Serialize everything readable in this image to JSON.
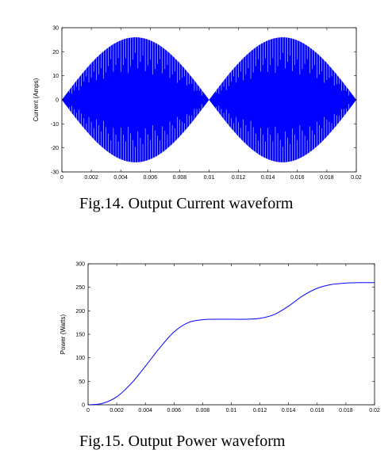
{
  "figures": [
    {
      "caption": "Fig.14. Output Current waveform"
    },
    {
      "caption": "Fig.15. Output Power waveform"
    }
  ],
  "chart_data": [
    {
      "type": "line",
      "title": "",
      "xlabel": "",
      "ylabel": "Current (Amps)",
      "xlim": [
        0,
        0.02
      ],
      "ylim": [
        -30,
        30
      ],
      "x_ticks": [
        "0",
        "0.002",
        "0.004",
        "0.006",
        "0.008",
        "0.01",
        "0.012",
        "0.014",
        "0.016",
        "0.018",
        "0.02"
      ],
      "y_ticks": [
        "-30",
        "-20",
        "-10",
        "0",
        "10",
        "20",
        "30"
      ],
      "envelope": {
        "amplitude": 26,
        "x_zeros": [
          0,
          0.01,
          0.02
        ],
        "x_peaks": [
          0.005,
          0.015
        ],
        "shape": "abs-sine, rapidly switching fill"
      },
      "grid": false,
      "color": "#0000ff"
    },
    {
      "type": "line",
      "title": "",
      "xlabel": "",
      "ylabel": "Power (Watts)",
      "xlim": [
        0,
        0.02
      ],
      "ylim": [
        0,
        300
      ],
      "x_ticks": [
        "0",
        "0.002",
        "0.004",
        "0.006",
        "0.008",
        "0.01",
        "0.012",
        "0.014",
        "0.016",
        "0.018",
        "0.02"
      ],
      "y_ticks": [
        "0",
        "50",
        "100",
        "150",
        "200",
        "250",
        "300"
      ],
      "x": [
        0,
        0.001,
        0.002,
        0.003,
        0.004,
        0.005,
        0.006,
        0.007,
        0.008,
        0.009,
        0.01,
        0.011,
        0.012,
        0.013,
        0.014,
        0.015,
        0.016,
        0.017,
        0.018,
        0.019,
        0.02
      ],
      "y": [
        0,
        3,
        17,
        45,
        82,
        121,
        155,
        175,
        181,
        182,
        182,
        182,
        184,
        192,
        210,
        232,
        248,
        256,
        259,
        260,
        260
      ],
      "grid": false,
      "color": "#0000ff"
    }
  ]
}
